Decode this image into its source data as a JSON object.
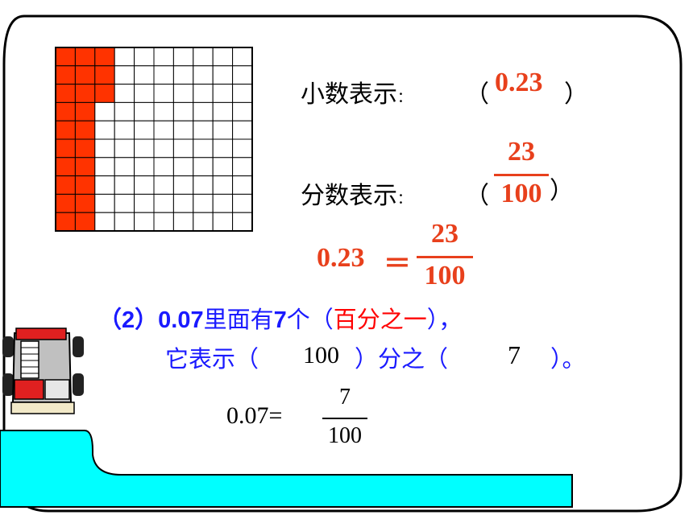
{
  "grid": {
    "rows": 10,
    "cols": 10,
    "shaded_count": 23,
    "fill_color": "#ff3300",
    "line_color": "#000000"
  },
  "colors": {
    "answer_red": "#e8401c",
    "text_blue": "#1a1aff",
    "water": "#00ffff"
  },
  "decimal_row": {
    "label": "小数表示",
    "colon": "：",
    "open": "（",
    "value": "0.23",
    "close": "）"
  },
  "fraction_row": {
    "label": "分数表示",
    "colon": "：",
    "open": "（",
    "numerator": "23",
    "denominator": "100",
    "close": "）"
  },
  "equation": {
    "left": "0.23",
    "equals": "＝",
    "numerator": "23",
    "denominator": "100"
  },
  "question": {
    "number": "（2）",
    "decimal": "0.07",
    "text1": "里面有",
    "count": "7",
    "text2": "个（",
    "answer": "百分之一",
    "text3": "），",
    "line2_a": "它表示（",
    "denominator": "100",
    "line2_b": "）分之（",
    "numerator": "7",
    "line2_c": "）。"
  },
  "bottom_eq": {
    "left": "0.07=",
    "numerator": "7",
    "denominator": "100"
  },
  "icons": [
    "car-icon"
  ]
}
